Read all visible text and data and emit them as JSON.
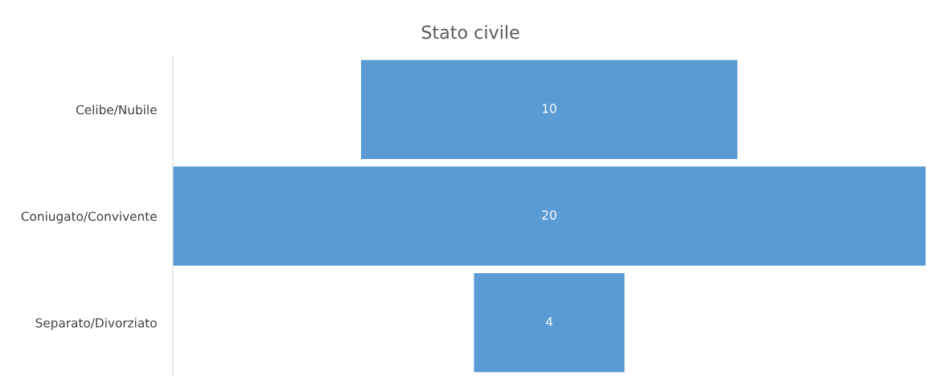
{
  "chart_data": {
    "type": "other",
    "title": "Stato civile",
    "categories": [
      "Celibe/Nubile",
      "Coniugato/Convivente",
      "Separato/Divorziato"
    ],
    "values": [
      10,
      20,
      4
    ],
    "color": "#5b9bd5",
    "data_labels": true
  }
}
